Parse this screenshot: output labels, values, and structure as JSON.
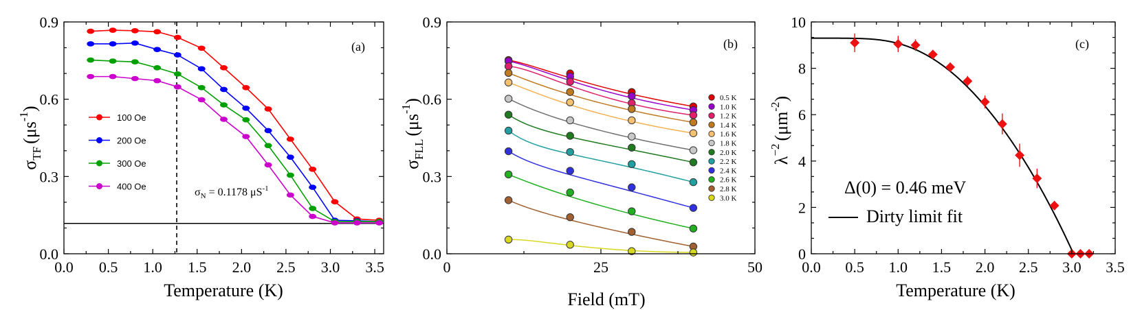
{
  "chart_data": [
    {
      "type": "line",
      "panel_label": "(a)",
      "xlabel": "Temperature (K)",
      "ylabel_main": "σ",
      "ylabel_sub": "TF",
      "ylabel_unit": "(μs",
      "ylabel_exp": "-1",
      "ylabel_close": ")",
      "xlim": [
        0.0,
        3.6
      ],
      "ylim": [
        0.0,
        0.9
      ],
      "xticks": [
        "0.0",
        "0.5",
        "1.0",
        "1.5",
        "2.0",
        "2.5",
        "3.0",
        "3.5"
      ],
      "yticks": [
        "0.0",
        "0.3",
        "0.6",
        "0.9"
      ],
      "x": [
        0.3,
        0.55,
        0.8,
        1.05,
        1.28,
        1.55,
        1.8,
        2.05,
        2.3,
        2.55,
        2.8,
        3.05,
        3.3,
        3.55
      ],
      "series": [
        {
          "name": "100 Oe",
          "color": "#ff0000",
          "values": [
            0.864,
            0.868,
            0.866,
            0.862,
            0.84,
            0.798,
            0.722,
            0.645,
            0.562,
            0.445,
            0.328,
            0.202,
            0.135,
            0.13
          ]
        },
        {
          "name": "200 Oe",
          "color": "#0000ff",
          "values": [
            0.815,
            0.815,
            0.818,
            0.793,
            0.772,
            0.718,
            0.638,
            0.565,
            0.478,
            0.375,
            0.258,
            0.13,
            0.128,
            0.125
          ]
        },
        {
          "name": "300 Oe",
          "color": "#00a000",
          "values": [
            0.752,
            0.748,
            0.745,
            0.722,
            0.698,
            0.645,
            0.578,
            0.52,
            0.42,
            0.305,
            0.176,
            0.125,
            0.125,
            0.125
          ]
        },
        {
          "name": "400 Oe",
          "color": "#cc00cc",
          "values": [
            0.688,
            0.688,
            0.68,
            0.672,
            0.648,
            0.598,
            0.522,
            0.455,
            0.345,
            0.228,
            0.145,
            0.12,
            0.12,
            0.12
          ]
        }
      ],
      "hline_value": 0.1178,
      "vline_value": 1.27,
      "annotation_main": "σ",
      "annotation_sub": "N",
      "annotation_text": " = 0.1178 μS",
      "annotation_exp": "-1"
    },
    {
      "type": "scatter",
      "panel_label": "(b)",
      "xlabel": "Field (mT)",
      "ylabel_main": "σ",
      "ylabel_sub": "FLL",
      "ylabel_unit": "(μs",
      "ylabel_exp": "-1",
      "ylabel_close": ")",
      "xlim": [
        0,
        50
      ],
      "ylim": [
        0.0,
        0.9
      ],
      "xticks": [
        "0",
        "25",
        "50"
      ],
      "yticks": [
        "0.0",
        "0.3",
        "0.6",
        "0.9"
      ],
      "x": [
        10,
        20,
        30,
        40
      ],
      "series": [
        {
          "name": "0.5 K",
          "color": "#e00000",
          "values": [
            0.752,
            0.7,
            0.628,
            0.572
          ]
        },
        {
          "name": "1.0 K",
          "color": "#9900cc",
          "values": [
            0.748,
            0.688,
            0.612,
            0.558
          ]
        },
        {
          "name": "1.2 K",
          "color": "#e0206a",
          "values": [
            0.728,
            0.668,
            0.585,
            0.538
          ]
        },
        {
          "name": "1.4 K",
          "color": "#c07a20",
          "values": [
            0.702,
            0.628,
            0.562,
            0.51
          ]
        },
        {
          "name": "1.6 K",
          "color": "#f5c070",
          "values": [
            0.665,
            0.588,
            0.518,
            0.468
          ]
        },
        {
          "name": "1.8 K",
          "color": "#c8c8c8",
          "values": [
            0.602,
            0.518,
            0.455,
            0.402
          ]
        },
        {
          "name": "2.0 K",
          "color": "#207a20",
          "values": [
            0.54,
            0.458,
            0.412,
            0.355
          ]
        },
        {
          "name": "2.2 K",
          "color": "#20a0a0",
          "values": [
            0.478,
            0.395,
            0.348,
            0.278
          ]
        },
        {
          "name": "2.4 K",
          "color": "#3030e0",
          "values": [
            0.398,
            0.322,
            0.258,
            0.178
          ]
        },
        {
          "name": "2.6 K",
          "color": "#20b020",
          "values": [
            0.308,
            0.238,
            0.165,
            0.098
          ]
        },
        {
          "name": "2.8 K",
          "color": "#a06030",
          "values": [
            0.208,
            0.142,
            0.085,
            0.028
          ]
        },
        {
          "name": "3.0 K",
          "color": "#d8d820",
          "values": [
            0.055,
            0.035,
            0.01,
            0.005
          ]
        }
      ]
    },
    {
      "type": "scatter",
      "panel_label": "(c)",
      "xlabel": "Temperature (K)",
      "ylabel_main": "λ",
      "ylabel_exp": "−2",
      "ylabel_unit": "(μm",
      "ylabel_exp2": "-2",
      "ylabel_close": ")",
      "xlim": [
        0.0,
        3.5
      ],
      "ylim": [
        0,
        10
      ],
      "xticks": [
        "0.0",
        "0.5",
        "1.0",
        "1.5",
        "2.0",
        "2.5",
        "3.0",
        "3.5"
      ],
      "yticks": [
        "0",
        "2",
        "4",
        "6",
        "8",
        "10"
      ],
      "x": [
        0.5,
        1.0,
        1.2,
        1.4,
        1.6,
        1.8,
        2.0,
        2.2,
        2.4,
        2.6,
        2.8,
        3.0,
        3.1,
        3.2
      ],
      "values": [
        9.1,
        9.05,
        9.0,
        8.6,
        8.05,
        7.45,
        6.55,
        5.6,
        4.25,
        3.25,
        2.08,
        0.0,
        0.0,
        0.0
      ],
      "errors": [
        0.4,
        0.35,
        0.25,
        0.2,
        0.2,
        0.22,
        0.28,
        0.45,
        0.5,
        0.42,
        0.2,
        0.1,
        0.08,
        0.08
      ],
      "marker_color": "#ee1111",
      "fit_label": "Dirty limit fit",
      "fit_lambda0": 9.3,
      "fit_tc": 3.02,
      "annotation": "Δ(0) = 0.46 meV"
    }
  ]
}
